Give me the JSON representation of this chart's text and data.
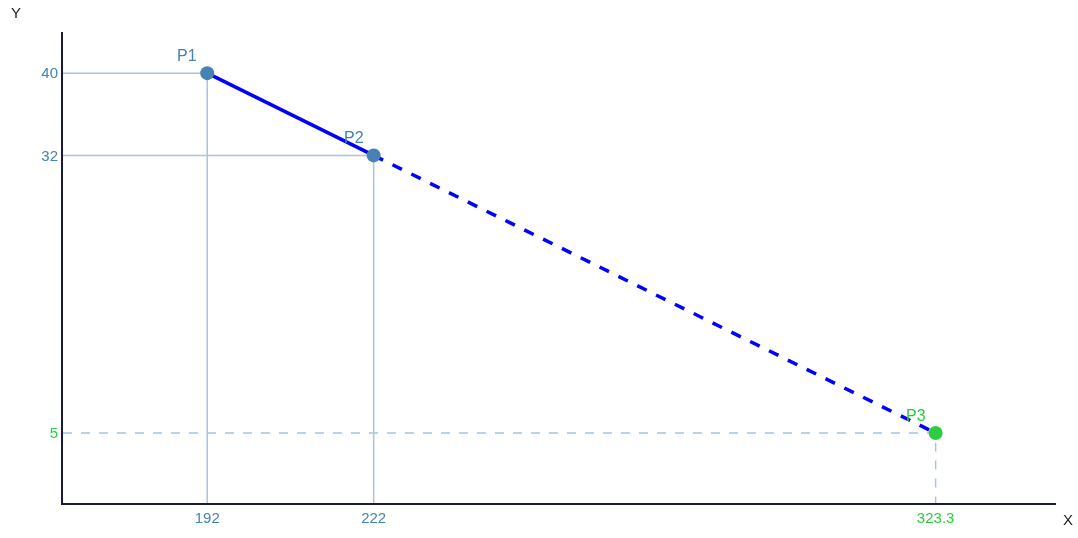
{
  "chart_data": {
    "type": "line",
    "xlabel": "X",
    "ylabel": "Y",
    "xlim": [
      166,
      345
    ],
    "ylim": [
      -1.8,
      44
    ],
    "xticks": [
      192,
      222,
      323.3
    ],
    "yticks": [
      5,
      32,
      40
    ],
    "series": [
      {
        "x": [
          166,
          192,
          192
        ],
        "values": [
          40,
          40,
          -1.8
        ],
        "color": "#a9c4dc",
        "line_style": "solid",
        "marker": "none"
      },
      {
        "x": [
          166,
          222,
          222
        ],
        "values": [
          32,
          32,
          -1.8
        ],
        "color": "#a9c4dc",
        "line_style": "solid",
        "marker": "none"
      },
      {
        "x": [
          166,
          323.3,
          323.3
        ],
        "values": [
          5,
          5,
          -1.8
        ],
        "color": "#a9c4dc",
        "line_style": "dashed",
        "marker": "none"
      },
      {
        "x": [
          192,
          222
        ],
        "values": [
          40,
          32
        ],
        "color": "#0000ff",
        "line_style": "solid",
        "marker": "none"
      },
      {
        "x": [
          222,
          323.3
        ],
        "values": [
          32,
          5
        ],
        "color": "#0000ff",
        "line_style": "dashed",
        "marker": "none"
      },
      {
        "type": "scatter",
        "x": [
          192,
          222
        ],
        "values": [
          40,
          32
        ],
        "color": "#4682b4",
        "marker": "circle"
      },
      {
        "type": "scatter",
        "x": [
          323.3
        ],
        "values": [
          5
        ],
        "color": "#2ecc40",
        "marker": "circle"
      }
    ],
    "annotations": [
      {
        "text": "P1",
        "x": 192,
        "y": 40
      },
      {
        "text": "P2",
        "x": 222,
        "y": 32
      },
      {
        "text": "P3",
        "x": 323.3,
        "y": 5
      }
    ]
  }
}
